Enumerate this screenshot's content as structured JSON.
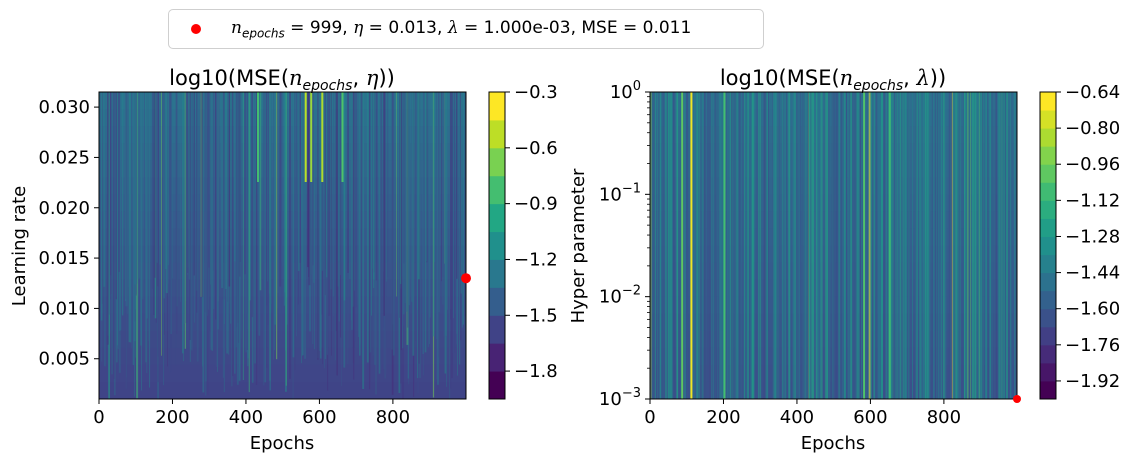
{
  "legend": {
    "marker_color": "#ff0000",
    "entry": "n_epochs = 999, η = 0.013, λ =  1.000e-03, MSE = 0.011",
    "n_epochs": "999",
    "eta": "0.013",
    "lambda": " 1.000e-03",
    "mse": "0.011"
  },
  "chart_data": [
    {
      "type": "heatmap",
      "title": "log10(MSE(n_epochs, η))",
      "xlabel": "Epochs",
      "ylabel": "Learning rate",
      "xlim": [
        0,
        999
      ],
      "ylim": [
        0.001,
        0.0315
      ],
      "yscale": "linear",
      "x_ticks": [
        "0",
        "200",
        "400",
        "600",
        "800"
      ],
      "x_tick_values": [
        0,
        200,
        400,
        600,
        800
      ],
      "y_ticks": [
        "0.005",
        "0.010",
        "0.015",
        "0.020",
        "0.025",
        "0.030"
      ],
      "y_tick_values": [
        0.005,
        0.01,
        0.015,
        0.02,
        0.025,
        0.03
      ],
      "colorbar": {
        "ticks": [
          "−1.8",
          "−1.5",
          "−1.2",
          "−0.9",
          "−0.6",
          "−0.3"
        ],
        "tick_values": [
          -1.8,
          -1.5,
          -1.2,
          -0.9,
          -0.6,
          -0.3
        ],
        "range": [
          -1.95,
          -0.3
        ],
        "levels": 11,
        "colormap": "viridis"
      },
      "marker": {
        "x": 999,
        "y": 0.013,
        "color": "#ff0000"
      }
    },
    {
      "type": "heatmap",
      "title": "log10(MSE(n_epochs, λ))",
      "xlabel": "Epochs",
      "ylabel": "Hyper parameter",
      "xlim": [
        0,
        999
      ],
      "ylim": [
        0.001,
        1
      ],
      "yscale": "log",
      "x_ticks": [
        "0",
        "200",
        "400",
        "600",
        "800"
      ],
      "x_tick_values": [
        0,
        200,
        400,
        600,
        800
      ],
      "y_ticks": [
        "-3",
        "-2",
        "-1",
        "0"
      ],
      "y_tick_values": [
        0.001,
        0.01,
        0.1,
        1
      ],
      "colorbar": {
        "ticks": [
          "−1.92",
          "−1.76",
          "−1.60",
          "−1.44",
          "−1.28",
          "−1.12",
          "−0.96",
          "−0.80",
          "−0.64"
        ],
        "tick_values": [
          -1.92,
          -1.76,
          -1.6,
          -1.44,
          -1.28,
          -1.12,
          -0.96,
          -0.8,
          -0.64
        ],
        "range": [
          -2.0,
          -0.64
        ],
        "levels": 17,
        "colormap": "viridis"
      },
      "marker": {
        "x": 999,
        "y": 0.001,
        "color": "#ff0000"
      }
    }
  ]
}
